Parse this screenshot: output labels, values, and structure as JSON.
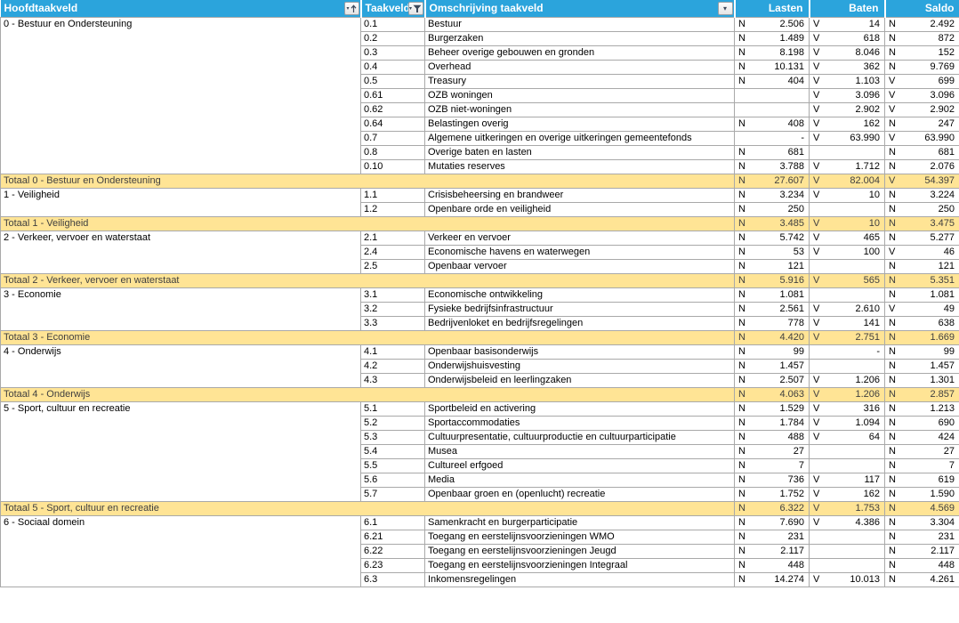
{
  "columns": {
    "hoofdtaakveld": "Hoofdtaakveld",
    "taakveld": "Taakveld",
    "omschrijving": "Omschrijving taakveld",
    "lasten": "Lasten",
    "baten": "Baten",
    "saldo": "Saldo"
  },
  "filter_buttons": {
    "hoofdtaakveld": "sort-ascending-with-dropdown",
    "taakveld": "filter-active-dropdown",
    "omschrijving": "dropdown"
  },
  "colors": {
    "header_bg": "#2BA4DC",
    "header_text": "#FFFFFF",
    "grid": "#A9A9A9",
    "total_bg": "#FFE495",
    "total_text": "#3F3F3F",
    "body_text": "#000000"
  },
  "sections": [
    {
      "name": "0 - Bestuur en Ondersteuning",
      "rows": [
        {
          "code": "0.1",
          "omschrijving": "Bestuur",
          "lasten": [
            "N",
            "2.506"
          ],
          "baten": [
            "V",
            "14"
          ],
          "saldo": [
            "N",
            "2.492"
          ]
        },
        {
          "code": "0.2",
          "omschrijving": "Burgerzaken",
          "lasten": [
            "N",
            "1.489"
          ],
          "baten": [
            "V",
            "618"
          ],
          "saldo": [
            "N",
            "872"
          ]
        },
        {
          "code": "0.3",
          "omschrijving": "Beheer overige gebouwen en gronden",
          "lasten": [
            "N",
            "8.198"
          ],
          "baten": [
            "V",
            "8.046"
          ],
          "saldo": [
            "N",
            "152"
          ]
        },
        {
          "code": "0.4",
          "omschrijving": "Overhead",
          "lasten": [
            "N",
            "10.131"
          ],
          "baten": [
            "V",
            "362"
          ],
          "saldo": [
            "N",
            "9.769"
          ]
        },
        {
          "code": "0.5",
          "omschrijving": "Treasury",
          "lasten": [
            "N",
            "404"
          ],
          "baten": [
            "V",
            "1.103"
          ],
          "saldo": [
            "V",
            "699"
          ]
        },
        {
          "code": "0.61",
          "omschrijving": "OZB woningen",
          "lasten": [
            "",
            ""
          ],
          "baten": [
            "V",
            "3.096"
          ],
          "saldo": [
            "V",
            "3.096"
          ]
        },
        {
          "code": "0.62",
          "omschrijving": "OZB niet-woningen",
          "lasten": [
            "",
            ""
          ],
          "baten": [
            "V",
            "2.902"
          ],
          "saldo": [
            "V",
            "2.902"
          ]
        },
        {
          "code": "0.64",
          "omschrijving": "Belastingen overig",
          "lasten": [
            "N",
            "408"
          ],
          "baten": [
            "V",
            "162"
          ],
          "saldo": [
            "N",
            "247"
          ]
        },
        {
          "code": "0.7",
          "omschrijving": "Algemene uitkeringen en overige uitkeringen gemeentefonds",
          "lasten": [
            "",
            "-"
          ],
          "baten": [
            "V",
            "63.990"
          ],
          "saldo": [
            "V",
            "63.990"
          ]
        },
        {
          "code": "0.8",
          "omschrijving": "Overige baten en lasten",
          "lasten": [
            "N",
            "681"
          ],
          "baten": [
            "",
            ""
          ],
          "saldo": [
            "N",
            "681"
          ]
        },
        {
          "code": "0.10",
          "omschrijving": "Mutaties reserves",
          "lasten": [
            "N",
            "3.788"
          ],
          "baten": [
            "V",
            "1.712"
          ],
          "saldo": [
            "N",
            "2.076"
          ]
        }
      ],
      "total": {
        "label": "Totaal 0 - Bestuur en Ondersteuning",
        "lasten": [
          "N",
          "27.607"
        ],
        "baten": [
          "V",
          "82.004"
        ],
        "saldo": [
          "V",
          "54.397"
        ]
      }
    },
    {
      "name": "1 - Veiligheid",
      "rows": [
        {
          "code": "1.1",
          "omschrijving": "Crisisbeheersing en brandweer",
          "lasten": [
            "N",
            "3.234"
          ],
          "baten": [
            "V",
            "10"
          ],
          "saldo": [
            "N",
            "3.224"
          ]
        },
        {
          "code": "1.2",
          "omschrijving": "Openbare orde en veiligheid",
          "lasten": [
            "N",
            "250"
          ],
          "baten": [
            "",
            ""
          ],
          "saldo": [
            "N",
            "250"
          ]
        }
      ],
      "total": {
        "label": "Totaal 1 - Veiligheid",
        "lasten": [
          "N",
          "3.485"
        ],
        "baten": [
          "V",
          "10"
        ],
        "saldo": [
          "N",
          "3.475"
        ]
      }
    },
    {
      "name": "2 - Verkeer, vervoer en waterstaat",
      "rows": [
        {
          "code": "2.1",
          "omschrijving": "Verkeer en vervoer",
          "lasten": [
            "N",
            "5.742"
          ],
          "baten": [
            "V",
            "465"
          ],
          "saldo": [
            "N",
            "5.277"
          ]
        },
        {
          "code": "2.4",
          "omschrijving": "Economische havens en waterwegen",
          "lasten": [
            "N",
            "53"
          ],
          "baten": [
            "V",
            "100"
          ],
          "saldo": [
            "V",
            "46"
          ]
        },
        {
          "code": "2.5",
          "omschrijving": "Openbaar vervoer",
          "lasten": [
            "N",
            "121"
          ],
          "baten": [
            "",
            ""
          ],
          "saldo": [
            "N",
            "121"
          ]
        }
      ],
      "total": {
        "label": "Totaal 2 - Verkeer, vervoer en waterstaat",
        "lasten": [
          "N",
          "5.916"
        ],
        "baten": [
          "V",
          "565"
        ],
        "saldo": [
          "N",
          "5.351"
        ]
      }
    },
    {
      "name": "3 - Economie",
      "rows": [
        {
          "code": "3.1",
          "omschrijving": "Economische ontwikkeling",
          "lasten": [
            "N",
            "1.081"
          ],
          "baten": [
            "",
            ""
          ],
          "saldo": [
            "N",
            "1.081"
          ]
        },
        {
          "code": "3.2",
          "omschrijving": "Fysieke bedrijfsinfrastructuur",
          "lasten": [
            "N",
            "2.561"
          ],
          "baten": [
            "V",
            "2.610"
          ],
          "saldo": [
            "V",
            "49"
          ]
        },
        {
          "code": "3.3",
          "omschrijving": "Bedrijvenloket en bedrijfsregelingen",
          "lasten": [
            "N",
            "778"
          ],
          "baten": [
            "V",
            "141"
          ],
          "saldo": [
            "N",
            "638"
          ]
        }
      ],
      "total": {
        "label": "Totaal 3 - Economie",
        "lasten": [
          "N",
          "4.420"
        ],
        "baten": [
          "V",
          "2.751"
        ],
        "saldo": [
          "N",
          "1.669"
        ]
      }
    },
    {
      "name": "4 - Onderwijs",
      "rows": [
        {
          "code": "4.1",
          "omschrijving": "Openbaar basisonderwijs",
          "lasten": [
            "N",
            "99"
          ],
          "baten": [
            "",
            "-"
          ],
          "saldo": [
            "N",
            "99"
          ]
        },
        {
          "code": "4.2",
          "omschrijving": "Onderwijshuisvesting",
          "lasten": [
            "N",
            "1.457"
          ],
          "baten": [
            "",
            ""
          ],
          "saldo": [
            "N",
            "1.457"
          ]
        },
        {
          "code": "4.3",
          "omschrijving": "Onderwijsbeleid en leerlingzaken",
          "lasten": [
            "N",
            "2.507"
          ],
          "baten": [
            "V",
            "1.206"
          ],
          "saldo": [
            "N",
            "1.301"
          ]
        }
      ],
      "total": {
        "label": "Totaal 4 - Onderwijs",
        "lasten": [
          "N",
          "4.063"
        ],
        "baten": [
          "V",
          "1.206"
        ],
        "saldo": [
          "N",
          "2.857"
        ]
      }
    },
    {
      "name": "5 - Sport, cultuur en recreatie",
      "rows": [
        {
          "code": "5.1",
          "omschrijving": "Sportbeleid en activering",
          "lasten": [
            "N",
            "1.529"
          ],
          "baten": [
            "V",
            "316"
          ],
          "saldo": [
            "N",
            "1.213"
          ]
        },
        {
          "code": "5.2",
          "omschrijving": "Sportaccommodaties",
          "lasten": [
            "N",
            "1.784"
          ],
          "baten": [
            "V",
            "1.094"
          ],
          "saldo": [
            "N",
            "690"
          ]
        },
        {
          "code": "5.3",
          "omschrijving": "Cultuurpresentatie, cultuurproductie en cultuurparticipatie",
          "lasten": [
            "N",
            "488"
          ],
          "baten": [
            "V",
            "64"
          ],
          "saldo": [
            "N",
            "424"
          ]
        },
        {
          "code": "5.4",
          "omschrijving": "Musea",
          "lasten": [
            "N",
            "27"
          ],
          "baten": [
            "",
            ""
          ],
          "saldo": [
            "N",
            "27"
          ]
        },
        {
          "code": "5.5",
          "omschrijving": "Cultureel erfgoed",
          "lasten": [
            "N",
            "7"
          ],
          "baten": [
            "",
            ""
          ],
          "saldo": [
            "N",
            "7"
          ]
        },
        {
          "code": "5.6",
          "omschrijving": "Media",
          "lasten": [
            "N",
            "736"
          ],
          "baten": [
            "V",
            "117"
          ],
          "saldo": [
            "N",
            "619"
          ]
        },
        {
          "code": "5.7",
          "omschrijving": "Openbaar groen en (openlucht) recreatie",
          "lasten": [
            "N",
            "1.752"
          ],
          "baten": [
            "V",
            "162"
          ],
          "saldo": [
            "N",
            "1.590"
          ]
        }
      ],
      "total": {
        "label": "Totaal 5 - Sport, cultuur en recreatie",
        "lasten": [
          "N",
          "6.322"
        ],
        "baten": [
          "V",
          "1.753"
        ],
        "saldo": [
          "N",
          "4.569"
        ]
      }
    },
    {
      "name": "6 - Sociaal domein",
      "rows": [
        {
          "code": "6.1",
          "omschrijving": "Samenkracht en burgerparticipatie",
          "lasten": [
            "N",
            "7.690"
          ],
          "baten": [
            "V",
            "4.386"
          ],
          "saldo": [
            "N",
            "3.304"
          ]
        },
        {
          "code": "6.21",
          "omschrijving": "Toegang en eerstelijnsvoorzieningen WMO",
          "lasten": [
            "N",
            "231"
          ],
          "baten": [
            "",
            ""
          ],
          "saldo": [
            "N",
            "231"
          ]
        },
        {
          "code": "6.22",
          "omschrijving": "Toegang en eerstelijnsvoorzieningen Jeugd",
          "lasten": [
            "N",
            "2.117"
          ],
          "baten": [
            "",
            ""
          ],
          "saldo": [
            "N",
            "2.117"
          ]
        },
        {
          "code": "6.23",
          "omschrijving": "Toegang en eerstelijnsvoorzieningen Integraal",
          "lasten": [
            "N",
            "448"
          ],
          "baten": [
            "",
            ""
          ],
          "saldo": [
            "N",
            "448"
          ]
        },
        {
          "code": "6.3",
          "omschrijving": "Inkomensregelingen",
          "lasten": [
            "N",
            "14.274"
          ],
          "baten": [
            "V",
            "10.013"
          ],
          "saldo": [
            "N",
            "4.261"
          ]
        }
      ],
      "total": null
    }
  ]
}
